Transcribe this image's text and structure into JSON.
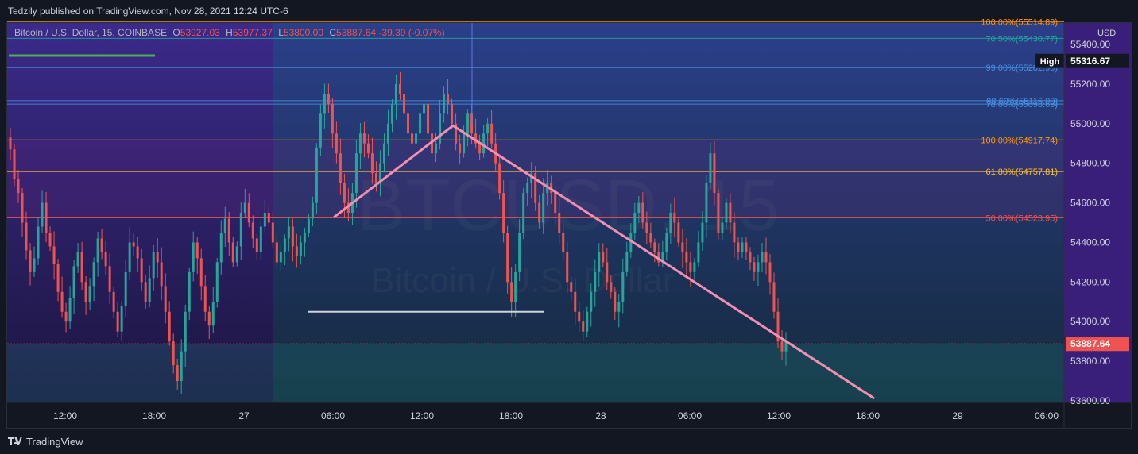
{
  "header": {
    "publisher": "Tedzily published on TradingView.com, Nov 28, 2021 12:24 UTC-6"
  },
  "legend": {
    "symbol": "Bitcoin / U.S. Dollar, 15, COINBASE",
    "open_label": "O",
    "open": "53927.03",
    "high_label": "H",
    "high": "53977.37",
    "low_label": "L",
    "low": "53800.00",
    "close_label": "C",
    "close": "53887.64",
    "change": "-39.39 (-0.07%)"
  },
  "watermark": {
    "ticker": "BTCUSD, 15",
    "name": "Bitcoin / U.S. Dollar"
  },
  "footer": {
    "brand": "TradingView"
  },
  "colors": {
    "background": "#131722",
    "up": "#26a69a",
    "down": "#ef5350",
    "trendline": "#f48fb1",
    "fib_100": "#ff9800",
    "fib_618": "#fbc02d",
    "fib_50": "#ef5350",
    "fib_blue": "#4a90e2",
    "fib_teal": "#26a69a"
  },
  "chart_data": {
    "type": "candlestick",
    "currency": "USD",
    "ylim": [
      53600,
      55560
    ],
    "y_ticks": [
      "55400.00",
      "55200.00",
      "55000.00",
      "54800.00",
      "54600.00",
      "54400.00",
      "54200.00",
      "54000.00",
      "53800.00",
      "53600.00"
    ],
    "x_ticks": [
      "12:00",
      "18:00",
      "27",
      "06:00",
      "12:00",
      "18:00",
      "28",
      "06:00",
      "12:00",
      "18:00",
      "29",
      "06:00"
    ],
    "last_price": "53887.64",
    "high_marker": {
      "label": "High",
      "value": "55316.67"
    },
    "fib_levels": [
      {
        "label": "100.00%(55514.89)",
        "value": 55514.89,
        "color": "fib_100"
      },
      {
        "label": "70.50%(55430.77)",
        "value": 55430.77,
        "color": "fib_teal"
      },
      {
        "label": "99.00%(55282.95)",
        "value": 55282.95,
        "color": "fib_blue"
      },
      {
        "label": "88.60%(55116.00)",
        "value": 55116.0,
        "color": "fib_blue"
      },
      {
        "label": "78.60%(55098.69)",
        "value": 55098.69,
        "color": "fib_blue"
      },
      {
        "label": "100.00%(54917.74)",
        "value": 54917.74,
        "color": "fib_100"
      },
      {
        "label": "61.80%(54757.81)",
        "value": 54757.81,
        "color": "fib_618"
      },
      {
        "label": "50.00%(54523.95)",
        "value": 54523.95,
        "color": "fib_50"
      }
    ],
    "candles_close": [
      54870,
      54720,
      54650,
      54500,
      54360,
      54250,
      54320,
      54480,
      54600,
      54450,
      54380,
      54290,
      54150,
      54050,
      54000,
      54120,
      54280,
      54350,
      54200,
      54100,
      54180,
      54300,
      54420,
      54350,
      54280,
      54150,
      54050,
      53950,
      54080,
      54250,
      54400,
      54380,
      54320,
      54200,
      54100,
      54220,
      54350,
      54300,
      54180,
      54050,
      53900,
      53780,
      53700,
      53850,
      54050,
      54250,
      54400,
      54320,
      54180,
      54050,
      53980,
      54100,
      54300,
      54450,
      54520,
      54400,
      54300,
      54380,
      54550,
      54600,
      54500,
      54420,
      54350,
      54480,
      54550,
      54500,
      54400,
      54300,
      54350,
      54420,
      54480,
      54380,
      54330,
      54400,
      54450,
      54520,
      54600,
      54880,
      55050,
      55150,
      55100,
      54950,
      54850,
      54700,
      54600,
      54550,
      54650,
      54850,
      54950,
      54900,
      54850,
      54750,
      54700,
      54800,
      54900,
      55000,
      55100,
      55200,
      55150,
      55050,
      54950,
      54900,
      54950,
      55050,
      55100,
      54950,
      54850,
      54900,
      55050,
      55150,
      55100,
      55000,
      54900,
      54850,
      54950,
      55050,
      54950,
      54900,
      54850,
      54950,
      55000,
      54900,
      54800,
      54650,
      54450,
      54200,
      54100,
      54250,
      54450,
      54650,
      54700,
      54750,
      54600,
      54500,
      54650,
      54700,
      54650,
      54550,
      54450,
      54350,
      54200,
      54150,
      54050,
      54000,
      53950,
      54050,
      54150,
      54250,
      54350,
      54300,
      54200,
      54150,
      54050,
      54100,
      54250,
      54350,
      54450,
      54550,
      54600,
      54500,
      54450,
      54400,
      54350,
      54300,
      54350,
      54450,
      54550,
      54500,
      54400,
      54350,
      54300,
      54250,
      54300,
      54400,
      54500,
      54700,
      54850,
      54650,
      54450,
      54500,
      54600,
      54500,
      54400,
      54350,
      54400,
      54350,
      54300,
      54250,
      54300,
      54350,
      54300,
      54200,
      54050,
      53900,
      53850,
      53900
    ],
    "annotations": [
      {
        "type": "trendline",
        "from": [
          "06:00 Nov 27",
          54530
        ],
        "to": [
          "14:00 Nov 27",
          54990
        ]
      },
      {
        "type": "trendline",
        "from": [
          "14:00 Nov 27",
          54990
        ],
        "to": [
          "18:00 Nov 28",
          53600
        ]
      },
      {
        "type": "hline",
        "from": "04:00 Nov 27",
        "to": "21:00 Nov 27",
        "value": 54050
      }
    ]
  }
}
